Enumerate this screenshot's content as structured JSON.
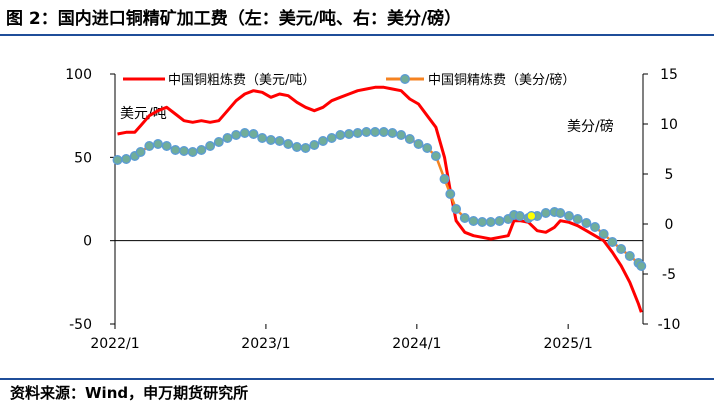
{
  "figure": {
    "title": "图 2：国内进口铜精矿加工费（左：美元/吨、右：美分/磅）",
    "source": "资料来源：Wind，申万期货研究所"
  },
  "chart_data": {
    "type": "line",
    "x_range": [
      "2022-01-01",
      "2025-07-01"
    ],
    "x_ticks": [
      "2022/1",
      "2023/1",
      "2024/1",
      "2025/1"
    ],
    "x_tick_dates": [
      "2022-01-01",
      "2023-01-01",
      "2024-01-01",
      "2025-01-01"
    ],
    "y_left": {
      "label": "美元/吨",
      "range": [
        -50,
        100
      ],
      "ticks": [
        -50,
        0,
        50,
        100
      ]
    },
    "y_right": {
      "label": "美分/磅",
      "range": [
        -10,
        15
      ],
      "ticks": [
        -10,
        -5,
        0,
        5,
        10,
        15
      ]
    },
    "legend_position": "top",
    "series": [
      {
        "name": "中国铜粗炼费（美元/吨）",
        "axis": "left",
        "color": "#ff0000",
        "points": [
          [
            "2022-01-07",
            64
          ],
          [
            "2022-01-28",
            65
          ],
          [
            "2022-02-18",
            65
          ],
          [
            "2022-03-04",
            69
          ],
          [
            "2022-03-25",
            75
          ],
          [
            "2022-04-15",
            78
          ],
          [
            "2022-05-06",
            80
          ],
          [
            "2022-05-27",
            76
          ],
          [
            "2022-06-17",
            72
          ],
          [
            "2022-07-08",
            71
          ],
          [
            "2022-07-29",
            72
          ],
          [
            "2022-08-19",
            71
          ],
          [
            "2022-09-09",
            72
          ],
          [
            "2022-09-30",
            78
          ],
          [
            "2022-10-21",
            84
          ],
          [
            "2022-11-11",
            88
          ],
          [
            "2022-12-02",
            90
          ],
          [
            "2022-12-23",
            89
          ],
          [
            "2023-01-13",
            86
          ],
          [
            "2023-02-03",
            88
          ],
          [
            "2023-02-24",
            87
          ],
          [
            "2023-03-17",
            83
          ],
          [
            "2023-04-07",
            80
          ],
          [
            "2023-04-28",
            78
          ],
          [
            "2023-05-19",
            80
          ],
          [
            "2023-06-09",
            84
          ],
          [
            "2023-06-30",
            86
          ],
          [
            "2023-07-21",
            88
          ],
          [
            "2023-08-11",
            90
          ],
          [
            "2023-09-01",
            91
          ],
          [
            "2023-09-22",
            92
          ],
          [
            "2023-10-13",
            92
          ],
          [
            "2023-11-03",
            91
          ],
          [
            "2023-11-24",
            90
          ],
          [
            "2023-12-15",
            85
          ],
          [
            "2024-01-05",
            82
          ],
          [
            "2024-01-26",
            75
          ],
          [
            "2024-02-16",
            68
          ],
          [
            "2024-03-08",
            50
          ],
          [
            "2024-03-22",
            30
          ],
          [
            "2024-04-05",
            12
          ],
          [
            "2024-04-26",
            5
          ],
          [
            "2024-05-17",
            3
          ],
          [
            "2024-06-07",
            2
          ],
          [
            "2024-06-28",
            1
          ],
          [
            "2024-07-19",
            2
          ],
          [
            "2024-08-09",
            3
          ],
          [
            "2024-08-23",
            12
          ],
          [
            "2024-09-06",
            12
          ],
          [
            "2024-09-27",
            11
          ],
          [
            "2024-10-18",
            6
          ],
          [
            "2024-11-08",
            5
          ],
          [
            "2024-11-29",
            8
          ],
          [
            "2024-12-13",
            12
          ],
          [
            "2025-01-03",
            11
          ],
          [
            "2025-01-24",
            9
          ],
          [
            "2025-02-14",
            6
          ],
          [
            "2025-03-07",
            3
          ],
          [
            "2025-03-28",
            0
          ],
          [
            "2025-04-18",
            -7
          ],
          [
            "2025-05-09",
            -15
          ],
          [
            "2025-05-30",
            -25
          ],
          [
            "2025-06-20",
            -38
          ],
          [
            "2025-06-27",
            -43
          ]
        ]
      },
      {
        "name": "中国铜精炼费（美分/磅）",
        "axis": "right",
        "color": "#f58220",
        "marker_fill": "#70ad9a",
        "marker_stroke": "#5b9bd5",
        "points": [
          [
            "2022-01-07",
            6.4
          ],
          [
            "2022-01-28",
            6.5
          ],
          [
            "2022-02-18",
            6.8
          ],
          [
            "2022-03-04",
            7.2
          ],
          [
            "2022-03-25",
            7.8
          ],
          [
            "2022-04-15",
            8.0
          ],
          [
            "2022-05-06",
            7.8
          ],
          [
            "2022-05-27",
            7.4
          ],
          [
            "2022-06-17",
            7.3
          ],
          [
            "2022-07-08",
            7.2
          ],
          [
            "2022-07-29",
            7.4
          ],
          [
            "2022-08-19",
            7.8
          ],
          [
            "2022-09-09",
            8.2
          ],
          [
            "2022-09-30",
            8.6
          ],
          [
            "2022-10-21",
            8.9
          ],
          [
            "2022-11-11",
            9.1
          ],
          [
            "2022-12-02",
            9.0
          ],
          [
            "2022-12-23",
            8.6
          ],
          [
            "2023-01-13",
            8.4
          ],
          [
            "2023-02-03",
            8.3
          ],
          [
            "2023-02-24",
            8.0
          ],
          [
            "2023-03-17",
            7.7
          ],
          [
            "2023-04-07",
            7.6
          ],
          [
            "2023-04-28",
            7.9
          ],
          [
            "2023-05-19",
            8.3
          ],
          [
            "2023-06-09",
            8.6
          ],
          [
            "2023-06-30",
            8.9
          ],
          [
            "2023-07-21",
            9.0
          ],
          [
            "2023-08-11",
            9.1
          ],
          [
            "2023-09-01",
            9.2
          ],
          [
            "2023-09-22",
            9.2
          ],
          [
            "2023-10-13",
            9.2
          ],
          [
            "2023-11-03",
            9.1
          ],
          [
            "2023-11-24",
            8.9
          ],
          [
            "2023-12-15",
            8.5
          ],
          [
            "2024-01-05",
            8.0
          ],
          [
            "2024-01-26",
            7.6
          ],
          [
            "2024-02-16",
            6.8
          ],
          [
            "2024-03-08",
            4.5
          ],
          [
            "2024-03-22",
            3.0
          ],
          [
            "2024-04-05",
            1.5
          ],
          [
            "2024-04-26",
            0.6
          ],
          [
            "2024-05-17",
            0.3
          ],
          [
            "2024-06-07",
            0.2
          ],
          [
            "2024-06-28",
            0.2
          ],
          [
            "2024-07-19",
            0.3
          ],
          [
            "2024-08-09",
            0.5
          ],
          [
            "2024-08-23",
            0.9
          ],
          [
            "2024-09-06",
            0.8
          ],
          [
            "2024-09-27",
            0.6
          ],
          [
            "2024-10-18",
            0.8
          ],
          [
            "2024-11-08",
            1.1
          ],
          [
            "2024-11-29",
            1.2
          ],
          [
            "2024-12-13",
            1.1
          ],
          [
            "2025-01-03",
            0.8
          ],
          [
            "2025-01-24",
            0.5
          ],
          [
            "2025-02-14",
            0.1
          ],
          [
            "2025-03-07",
            -0.3
          ],
          [
            "2025-03-28",
            -1.0
          ],
          [
            "2025-04-18",
            -1.8
          ],
          [
            "2025-05-09",
            -2.5
          ],
          [
            "2025-05-30",
            -3.2
          ],
          [
            "2025-06-20",
            -3.9
          ],
          [
            "2025-06-27",
            -4.2
          ]
        ]
      }
    ],
    "annotations": [
      {
        "type": "highlight-marker",
        "date": "2024-10-04",
        "axis": "right",
        "value": 0.8,
        "color": "#ffff00"
      }
    ]
  }
}
